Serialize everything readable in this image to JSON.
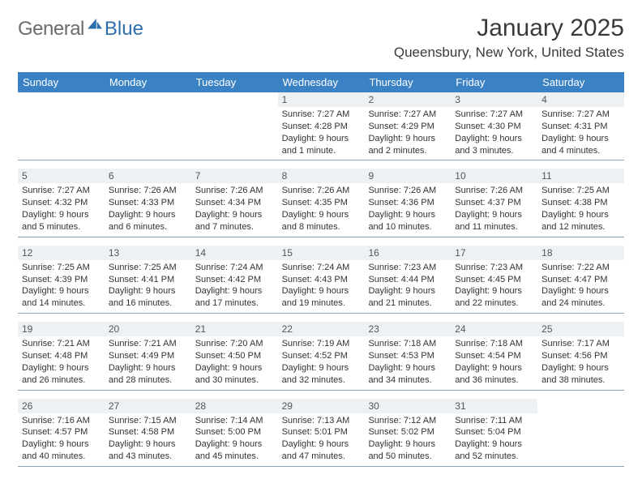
{
  "logo": {
    "text1": "General",
    "text2": "Blue"
  },
  "title": "January 2025",
  "location": "Queensbury, New York, United States",
  "colors": {
    "header_bg": "#3b82c4",
    "header_text": "#ffffff",
    "daybar_bg": "#eef1f4",
    "rule": "#8aa7c2",
    "logo_gray": "#6b6b6b",
    "logo_blue": "#2e6fab"
  },
  "daysOfWeek": [
    "Sunday",
    "Monday",
    "Tuesday",
    "Wednesday",
    "Thursday",
    "Friday",
    "Saturday"
  ],
  "weeks": [
    [
      null,
      null,
      null,
      {
        "n": "1",
        "sr": "Sunrise: 7:27 AM",
        "ss": "Sunset: 4:28 PM",
        "d1": "Daylight: 9 hours",
        "d2": "and 1 minute."
      },
      {
        "n": "2",
        "sr": "Sunrise: 7:27 AM",
        "ss": "Sunset: 4:29 PM",
        "d1": "Daylight: 9 hours",
        "d2": "and 2 minutes."
      },
      {
        "n": "3",
        "sr": "Sunrise: 7:27 AM",
        "ss": "Sunset: 4:30 PM",
        "d1": "Daylight: 9 hours",
        "d2": "and 3 minutes."
      },
      {
        "n": "4",
        "sr": "Sunrise: 7:27 AM",
        "ss": "Sunset: 4:31 PM",
        "d1": "Daylight: 9 hours",
        "d2": "and 4 minutes."
      }
    ],
    [
      {
        "n": "5",
        "sr": "Sunrise: 7:27 AM",
        "ss": "Sunset: 4:32 PM",
        "d1": "Daylight: 9 hours",
        "d2": "and 5 minutes."
      },
      {
        "n": "6",
        "sr": "Sunrise: 7:26 AM",
        "ss": "Sunset: 4:33 PM",
        "d1": "Daylight: 9 hours",
        "d2": "and 6 minutes."
      },
      {
        "n": "7",
        "sr": "Sunrise: 7:26 AM",
        "ss": "Sunset: 4:34 PM",
        "d1": "Daylight: 9 hours",
        "d2": "and 7 minutes."
      },
      {
        "n": "8",
        "sr": "Sunrise: 7:26 AM",
        "ss": "Sunset: 4:35 PM",
        "d1": "Daylight: 9 hours",
        "d2": "and 8 minutes."
      },
      {
        "n": "9",
        "sr": "Sunrise: 7:26 AM",
        "ss": "Sunset: 4:36 PM",
        "d1": "Daylight: 9 hours",
        "d2": "and 10 minutes."
      },
      {
        "n": "10",
        "sr": "Sunrise: 7:26 AM",
        "ss": "Sunset: 4:37 PM",
        "d1": "Daylight: 9 hours",
        "d2": "and 11 minutes."
      },
      {
        "n": "11",
        "sr": "Sunrise: 7:25 AM",
        "ss": "Sunset: 4:38 PM",
        "d1": "Daylight: 9 hours",
        "d2": "and 12 minutes."
      }
    ],
    [
      {
        "n": "12",
        "sr": "Sunrise: 7:25 AM",
        "ss": "Sunset: 4:39 PM",
        "d1": "Daylight: 9 hours",
        "d2": "and 14 minutes."
      },
      {
        "n": "13",
        "sr": "Sunrise: 7:25 AM",
        "ss": "Sunset: 4:41 PM",
        "d1": "Daylight: 9 hours",
        "d2": "and 16 minutes."
      },
      {
        "n": "14",
        "sr": "Sunrise: 7:24 AM",
        "ss": "Sunset: 4:42 PM",
        "d1": "Daylight: 9 hours",
        "d2": "and 17 minutes."
      },
      {
        "n": "15",
        "sr": "Sunrise: 7:24 AM",
        "ss": "Sunset: 4:43 PM",
        "d1": "Daylight: 9 hours",
        "d2": "and 19 minutes."
      },
      {
        "n": "16",
        "sr": "Sunrise: 7:23 AM",
        "ss": "Sunset: 4:44 PM",
        "d1": "Daylight: 9 hours",
        "d2": "and 21 minutes."
      },
      {
        "n": "17",
        "sr": "Sunrise: 7:23 AM",
        "ss": "Sunset: 4:45 PM",
        "d1": "Daylight: 9 hours",
        "d2": "and 22 minutes."
      },
      {
        "n": "18",
        "sr": "Sunrise: 7:22 AM",
        "ss": "Sunset: 4:47 PM",
        "d1": "Daylight: 9 hours",
        "d2": "and 24 minutes."
      }
    ],
    [
      {
        "n": "19",
        "sr": "Sunrise: 7:21 AM",
        "ss": "Sunset: 4:48 PM",
        "d1": "Daylight: 9 hours",
        "d2": "and 26 minutes."
      },
      {
        "n": "20",
        "sr": "Sunrise: 7:21 AM",
        "ss": "Sunset: 4:49 PM",
        "d1": "Daylight: 9 hours",
        "d2": "and 28 minutes."
      },
      {
        "n": "21",
        "sr": "Sunrise: 7:20 AM",
        "ss": "Sunset: 4:50 PM",
        "d1": "Daylight: 9 hours",
        "d2": "and 30 minutes."
      },
      {
        "n": "22",
        "sr": "Sunrise: 7:19 AM",
        "ss": "Sunset: 4:52 PM",
        "d1": "Daylight: 9 hours",
        "d2": "and 32 minutes."
      },
      {
        "n": "23",
        "sr": "Sunrise: 7:18 AM",
        "ss": "Sunset: 4:53 PM",
        "d1": "Daylight: 9 hours",
        "d2": "and 34 minutes."
      },
      {
        "n": "24",
        "sr": "Sunrise: 7:18 AM",
        "ss": "Sunset: 4:54 PM",
        "d1": "Daylight: 9 hours",
        "d2": "and 36 minutes."
      },
      {
        "n": "25",
        "sr": "Sunrise: 7:17 AM",
        "ss": "Sunset: 4:56 PM",
        "d1": "Daylight: 9 hours",
        "d2": "and 38 minutes."
      }
    ],
    [
      {
        "n": "26",
        "sr": "Sunrise: 7:16 AM",
        "ss": "Sunset: 4:57 PM",
        "d1": "Daylight: 9 hours",
        "d2": "and 40 minutes."
      },
      {
        "n": "27",
        "sr": "Sunrise: 7:15 AM",
        "ss": "Sunset: 4:58 PM",
        "d1": "Daylight: 9 hours",
        "d2": "and 43 minutes."
      },
      {
        "n": "28",
        "sr": "Sunrise: 7:14 AM",
        "ss": "Sunset: 5:00 PM",
        "d1": "Daylight: 9 hours",
        "d2": "and 45 minutes."
      },
      {
        "n": "29",
        "sr": "Sunrise: 7:13 AM",
        "ss": "Sunset: 5:01 PM",
        "d1": "Daylight: 9 hours",
        "d2": "and 47 minutes."
      },
      {
        "n": "30",
        "sr": "Sunrise: 7:12 AM",
        "ss": "Sunset: 5:02 PM",
        "d1": "Daylight: 9 hours",
        "d2": "and 50 minutes."
      },
      {
        "n": "31",
        "sr": "Sunrise: 7:11 AM",
        "ss": "Sunset: 5:04 PM",
        "d1": "Daylight: 9 hours",
        "d2": "and 52 minutes."
      },
      null
    ]
  ]
}
